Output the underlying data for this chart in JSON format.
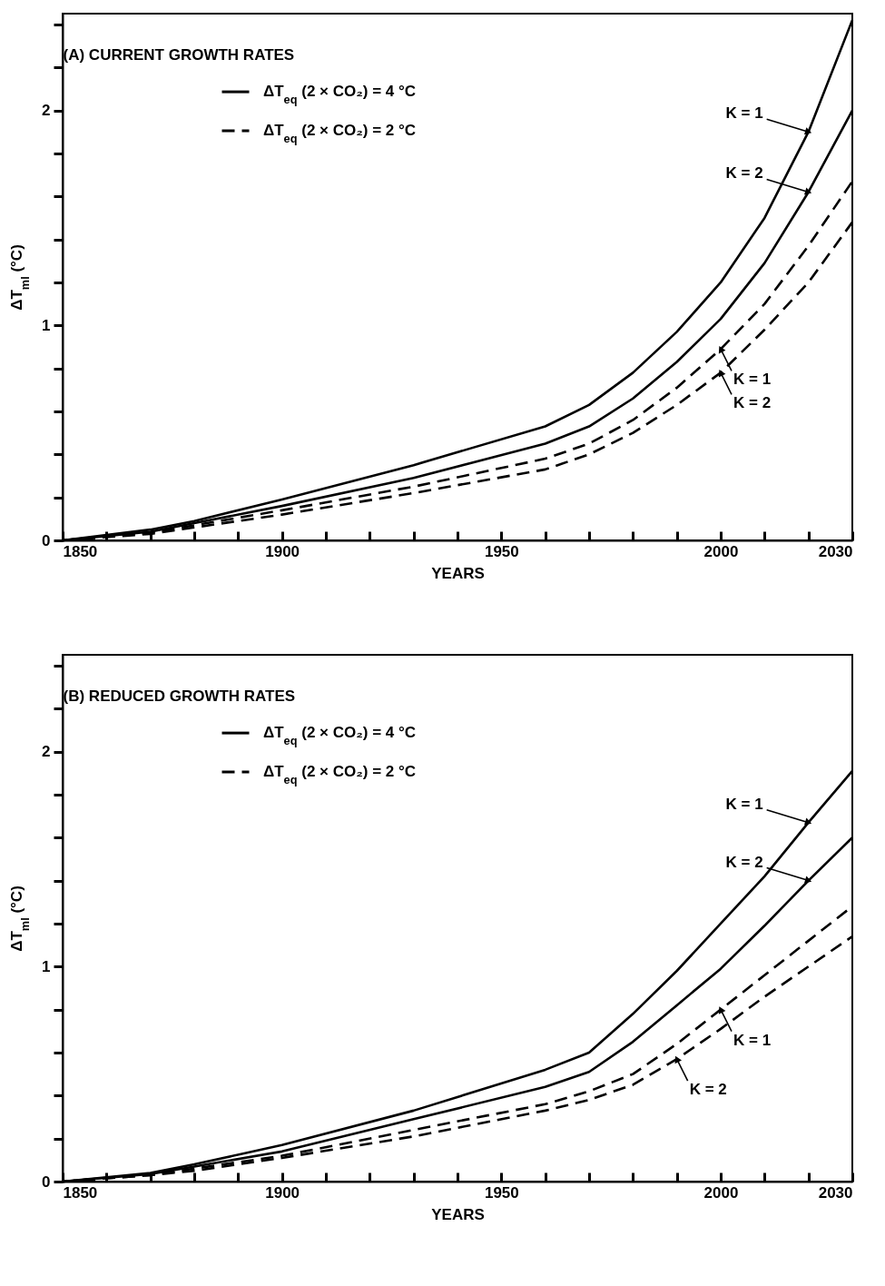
{
  "chart_data": [
    {
      "type": "line",
      "title": "(A)  CURRENT GROWTH RATES",
      "xlabel": "YEARS",
      "ylabel": "ΔT$_{ml}$ (°C)",
      "legend": "top left",
      "marker": "none",
      "grid": false,
      "xlim": [
        1850,
        2030
      ],
      "ylim": [
        0,
        2.45
      ],
      "xticks": [
        1850,
        {
          "value": 1860,
          "label": null
        },
        {
          "value": 1870,
          "label": null
        },
        {
          "value": 1880,
          "label": null
        },
        {
          "value": 1890,
          "label": null
        },
        1900,
        {
          "value": 1910,
          "label": null
        },
        {
          "value": 1920,
          "label": null
        },
        {
          "value": 1930,
          "label": null
        },
        {
          "value": 1940,
          "label": null
        },
        1950,
        {
          "value": 1960,
          "label": null
        },
        {
          "value": 1970,
          "label": null
        },
        {
          "value": 1980,
          "label": null
        },
        {
          "value": 1990,
          "label": null
        },
        2000,
        {
          "value": 2010,
          "label": null
        },
        {
          "value": 2020,
          "label": null
        },
        2030
      ],
      "yticks": [
        0,
        {
          "value": 0.2,
          "label": null
        },
        {
          "value": 0.4,
          "label": null
        },
        {
          "value": 0.6,
          "label": null
        },
        {
          "value": 0.8,
          "label": null
        },
        1,
        {
          "value": 1.2,
          "label": null
        },
        {
          "value": 1.4,
          "label": null
        },
        {
          "value": 1.6,
          "label": null
        },
        {
          "value": 1.8,
          "label": null
        },
        2,
        {
          "value": 2.2,
          "label": null
        },
        {
          "value": 2.4,
          "label": null
        }
      ],
      "x": [
        1850,
        1870,
        1880,
        1900,
        1930,
        1960,
        1970,
        1980,
        1990,
        2000,
        2010,
        2020,
        2030
      ],
      "series": [
        {
          "name": "ΔT$_{eq}$ (2 × CO₂) = 4 °C",
          "color": "#000000",
          "line_style": "solid",
          "values": [
            0,
            0.05,
            0.09,
            0.19,
            0.35,
            0.53,
            0.63,
            0.78,
            0.97,
            1.2,
            1.5,
            1.9,
            2.42
          ]
        },
        {
          "color": "#000000",
          "line_style": "solid",
          "values": [
            0,
            0.04,
            0.08,
            0.16,
            0.29,
            0.45,
            0.53,
            0.66,
            0.83,
            1.03,
            1.29,
            1.62,
            2.0
          ]
        },
        {
          "name": "ΔT$_{eq}$ (2 × CO₂) = 2 °C",
          "color": "#000000",
          "line_style": "dashed",
          "values": [
            0,
            0.035,
            0.07,
            0.14,
            0.25,
            0.38,
            0.45,
            0.56,
            0.71,
            0.89,
            1.1,
            1.37,
            1.67
          ]
        },
        {
          "color": "#000000",
          "line_style": "dashed",
          "values": [
            0,
            0.03,
            0.06,
            0.12,
            0.22,
            0.33,
            0.4,
            0.5,
            0.63,
            0.78,
            0.98,
            1.2,
            1.48
          ]
        }
      ],
      "annotations": [
        {
          "text": "K = 1",
          "x": 2020,
          "y": 1.9
        },
        {
          "text": "K = 2",
          "x": 2020,
          "y": 1.62
        },
        {
          "text": "K = 1",
          "x": 2000,
          "y": 0.89
        },
        {
          "text": "K = 2",
          "x": 2000,
          "y": 0.78
        }
      ]
    },
    {
      "type": "line",
      "title": "(B)  REDUCED GROWTH RATES",
      "xlabel": "YEARS",
      "ylabel": "ΔT$_{ml}$ (°C)",
      "legend": "top left",
      "marker": "none",
      "grid": false,
      "xlim": [
        1850,
        2030
      ],
      "ylim": [
        0,
        2.45
      ],
      "xticks": [
        1850,
        {
          "value": 1860,
          "label": null
        },
        {
          "value": 1870,
          "label": null
        },
        {
          "value": 1880,
          "label": null
        },
        {
          "value": 1890,
          "label": null
        },
        1900,
        {
          "value": 1910,
          "label": null
        },
        {
          "value": 1920,
          "label": null
        },
        {
          "value": 1930,
          "label": null
        },
        {
          "value": 1940,
          "label": null
        },
        1950,
        {
          "value": 1960,
          "label": null
        },
        {
          "value": 1970,
          "label": null
        },
        {
          "value": 1980,
          "label": null
        },
        {
          "value": 1990,
          "label": null
        },
        2000,
        {
          "value": 2010,
          "label": null
        },
        {
          "value": 2020,
          "label": null
        },
        2030
      ],
      "yticks": [
        0,
        {
          "value": 0.2,
          "label": null
        },
        {
          "value": 0.4,
          "label": null
        },
        {
          "value": 0.6,
          "label": null
        },
        {
          "value": 0.8,
          "label": null
        },
        1,
        {
          "value": 1.2,
          "label": null
        },
        {
          "value": 1.4,
          "label": null
        },
        {
          "value": 1.6,
          "label": null
        },
        {
          "value": 1.8,
          "label": null
        },
        2,
        {
          "value": 2.2,
          "label": null
        },
        {
          "value": 2.4,
          "label": null
        }
      ],
      "x": [
        1850,
        1870,
        1880,
        1900,
        1930,
        1960,
        1970,
        1980,
        1990,
        2000,
        2010,
        2020,
        2030
      ],
      "series": [
        {
          "name": "ΔT$_{eq}$ (2 × CO₂) = 4 °C",
          "color": "#000000",
          "line_style": "solid",
          "values": [
            0,
            0.04,
            0.08,
            0.17,
            0.33,
            0.52,
            0.6,
            0.78,
            0.98,
            1.2,
            1.42,
            1.67,
            1.91
          ]
        },
        {
          "color": "#000000",
          "line_style": "solid",
          "values": [
            0,
            0.035,
            0.07,
            0.14,
            0.29,
            0.44,
            0.51,
            0.65,
            0.82,
            0.99,
            1.19,
            1.4,
            1.6
          ]
        },
        {
          "name": "ΔT$_{eq}$ (2 × CO₂) = 2 °C",
          "color": "#000000",
          "line_style": "dashed",
          "values": [
            0,
            0.03,
            0.06,
            0.12,
            0.24,
            0.36,
            0.42,
            0.5,
            0.64,
            0.8,
            0.96,
            1.12,
            1.28
          ]
        },
        {
          "color": "#000000",
          "line_style": "dashed",
          "values": [
            0,
            0.03,
            0.05,
            0.11,
            0.21,
            0.33,
            0.38,
            0.45,
            0.57,
            0.71,
            0.86,
            1.0,
            1.14
          ]
        }
      ],
      "annotations": [
        {
          "text": "K = 1",
          "x": 2020,
          "y": 1.67
        },
        {
          "text": "K = 2",
          "x": 2020,
          "y": 1.4
        },
        {
          "text": "K = 1",
          "x": 2000,
          "y": 0.8
        },
        {
          "text": "K = 2",
          "x": 1990,
          "y": 0.57
        }
      ]
    }
  ]
}
